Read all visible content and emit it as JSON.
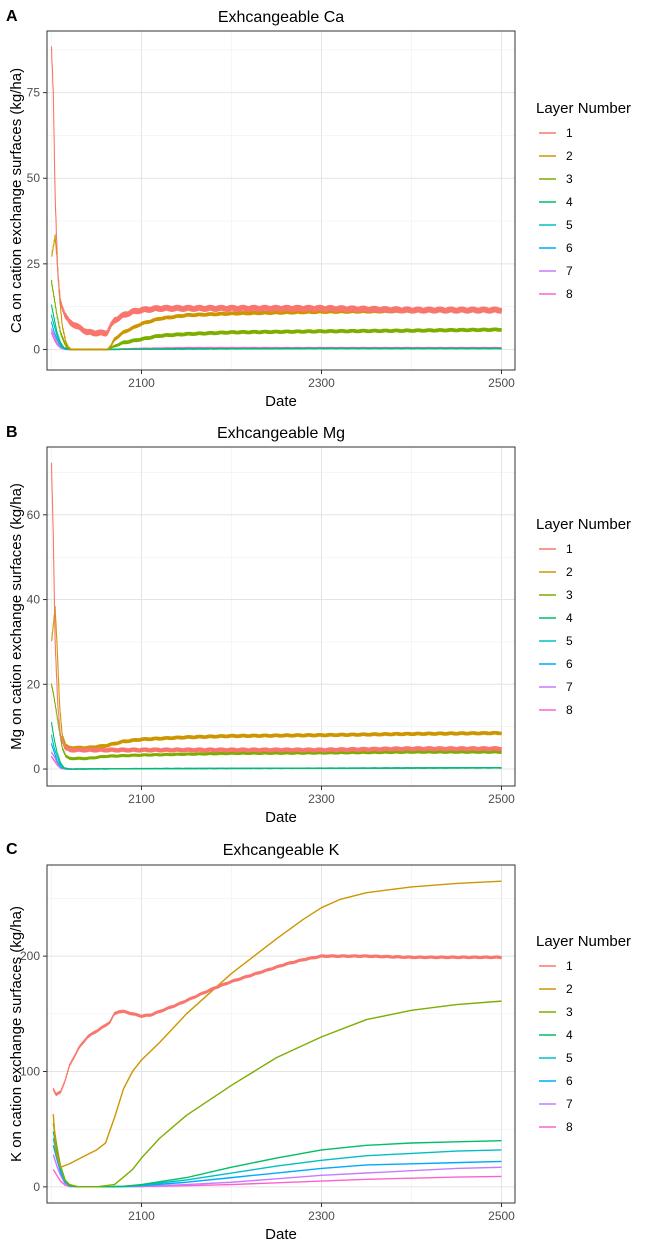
{
  "legend_colors": [
    "#F8766D",
    "#CD9600",
    "#7CAE00",
    "#00BE67",
    "#00BFC4",
    "#00A9FF",
    "#C77CFF",
    "#FF61CC"
  ],
  "chart_data": [
    {
      "type": "line",
      "panel_label": "A",
      "title": "Exhcangeable Ca",
      "xlabel": "Date",
      "ylabel": "Ca on cation exchange surfaces (kg/ha)",
      "xlim": [
        1995,
        2515
      ],
      "ylim": [
        -6,
        93
      ],
      "xticks": [
        2100,
        2300,
        2500
      ],
      "yticks": [
        0,
        25,
        50,
        75
      ],
      "grid": true,
      "legend": {
        "title": "Layer Number",
        "position": "right"
      },
      "series": [
        {
          "name": "1",
          "noise": 0.9,
          "x": [
            2000,
            2002,
            2004,
            2007,
            2010,
            2015,
            2020,
            2030,
            2040,
            2050,
            2060,
            2062,
            2066,
            2070,
            2080,
            2090,
            2100,
            2120,
            2150,
            2200,
            2300,
            2400,
            2500
          ],
          "y": [
            88,
            75,
            45,
            22,
            14,
            10,
            8,
            6.5,
            5,
            4.8,
            4.8,
            5,
            7,
            8.5,
            10,
            11,
            11.5,
            12,
            12,
            12,
            12,
            11.5,
            11.5
          ]
        },
        {
          "name": "2",
          "noise": 0.5,
          "x": [
            2000,
            2002,
            2004,
            2006,
            2009,
            2012,
            2016,
            2020,
            2062,
            2066,
            2070,
            2080,
            2100,
            2120,
            2150,
            2200,
            2300,
            2400,
            2500
          ],
          "y": [
            27,
            30,
            33,
            27,
            15,
            7,
            2,
            0,
            0,
            1,
            3,
            5,
            7.5,
            9,
            10,
            10.5,
            11,
            11.2,
            11.5
          ]
        },
        {
          "name": "3",
          "noise": 0.5,
          "x": [
            2000,
            2003,
            2006,
            2010,
            2016,
            2022,
            2062,
            2066,
            2070,
            2080,
            2100,
            2120,
            2150,
            2200,
            2300,
            2400,
            2500
          ],
          "y": [
            20,
            15,
            10,
            5,
            1,
            0,
            0,
            0.5,
            1,
            2,
            3,
            4,
            4.5,
            5,
            5.3,
            5.5,
            5.8
          ]
        },
        {
          "name": "4",
          "noise": 0.2,
          "x": [
            2000,
            2003,
            2006,
            2010,
            2014,
            2020,
            2062,
            2100,
            2200,
            2300,
            2500
          ],
          "y": [
            13,
            9,
            5,
            2,
            0.5,
            0,
            0,
            0.1,
            0.2,
            0.3,
            0.3
          ]
        },
        {
          "name": "5",
          "noise": 0.2,
          "x": [
            2000,
            2003,
            2006,
            2010,
            2014,
            2020,
            2062,
            2100,
            2200,
            2300,
            2500
          ],
          "y": [
            10,
            7,
            4,
            1.5,
            0.3,
            0,
            0,
            0.1,
            0.2,
            0.3,
            0.3
          ]
        },
        {
          "name": "6",
          "noise": 0.2,
          "x": [
            2000,
            2003,
            2006,
            2010,
            2016,
            2062,
            2100,
            2200,
            2300,
            2500
          ],
          "y": [
            8,
            5,
            3,
            1,
            0,
            0,
            0.1,
            0.2,
            0.3,
            0.3
          ]
        },
        {
          "name": "7",
          "noise": 0.2,
          "x": [
            2000,
            2003,
            2006,
            2010,
            2016,
            2062,
            2100,
            2200,
            2300,
            2500
          ],
          "y": [
            6,
            4,
            2,
            0.5,
            0,
            0,
            0.1,
            0.2,
            0.3,
            0.3
          ]
        },
        {
          "name": "8",
          "noise": 0.3,
          "x": [
            2000,
            2003,
            2006,
            2010,
            2016,
            2062,
            2100,
            2150,
            2200,
            2300,
            2500
          ],
          "y": [
            5,
            3,
            1.5,
            0.5,
            0,
            0,
            0.3,
            0.5,
            0.5,
            0.5,
            0.5
          ]
        }
      ]
    },
    {
      "type": "line",
      "panel_label": "B",
      "title": "Exhcangeable Mg",
      "xlabel": "Date",
      "ylabel": "Mg on cation exchange surfaces (kg/ha)",
      "xlim": [
        1995,
        2515
      ],
      "ylim": [
        -4,
        76
      ],
      "xticks": [
        2100,
        2300,
        2500
      ],
      "yticks": [
        0,
        20,
        40,
        60
      ],
      "grid": true,
      "legend": {
        "title": "Layer Number",
        "position": "right"
      },
      "series": [
        {
          "name": "1",
          "noise": 0.5,
          "x": [
            2000,
            2002,
            2004,
            2007,
            2010,
            2015,
            2020,
            2040,
            2060,
            2100,
            2200,
            2300,
            2400,
            2500
          ],
          "y": [
            72,
            55,
            30,
            15,
            8,
            5,
            4.5,
            4.5,
            4.5,
            4.5,
            4.5,
            4.5,
            4.8,
            4.8
          ]
        },
        {
          "name": "2",
          "noise": 0.4,
          "x": [
            2000,
            2002,
            2004,
            2006,
            2009,
            2012,
            2016,
            2020,
            2040,
            2060,
            2080,
            2100,
            2150,
            2200,
            2300,
            2400,
            2500
          ],
          "y": [
            30,
            34,
            38,
            30,
            15,
            8,
            5.5,
            5,
            5,
            5.5,
            6.5,
            7,
            7.5,
            7.8,
            8,
            8.3,
            8.5
          ]
        },
        {
          "name": "3",
          "noise": 0.3,
          "x": [
            2000,
            2002,
            2005,
            2008,
            2012,
            2016,
            2020,
            2040,
            2060,
            2100,
            2150,
            2200,
            2300,
            2400,
            2500
          ],
          "y": [
            20,
            18,
            14,
            10,
            5,
            3,
            2.5,
            2.5,
            3,
            3.3,
            3.5,
            3.7,
            3.8,
            4,
            4
          ]
        },
        {
          "name": "4",
          "noise": 0.15,
          "x": [
            2000,
            2003,
            2006,
            2010,
            2014,
            2020,
            2100,
            2300,
            2500
          ],
          "y": [
            11,
            7,
            4,
            1.5,
            0.3,
            0,
            0.1,
            0.2,
            0.3
          ]
        },
        {
          "name": "5",
          "noise": 0.15,
          "x": [
            2000,
            2003,
            2006,
            2010,
            2014,
            2020,
            2100,
            2300,
            2500
          ],
          "y": [
            8,
            5,
            3,
            1,
            0.2,
            0,
            0.1,
            0.2,
            0.3
          ]
        },
        {
          "name": "6",
          "noise": 0.15,
          "x": [
            2000,
            2003,
            2006,
            2010,
            2016,
            2100,
            2300,
            2500
          ],
          "y": [
            6,
            4,
            2,
            0.5,
            0,
            0.1,
            0.2,
            0.3
          ]
        },
        {
          "name": "7",
          "noise": 0.15,
          "x": [
            2000,
            2003,
            2006,
            2010,
            2016,
            2100,
            2300,
            2500
          ],
          "y": [
            4,
            3,
            1.5,
            0.3,
            0,
            0.1,
            0.2,
            0.3
          ]
        },
        {
          "name": "8",
          "noise": 0.15,
          "x": [
            2000,
            2003,
            2006,
            2010,
            2016,
            2100,
            2300,
            2500
          ],
          "y": [
            3,
            2,
            1,
            0.2,
            0,
            0.1,
            0.2,
            0.3
          ]
        }
      ]
    },
    {
      "type": "line",
      "panel_label": "C",
      "title": "Exhcangeable K",
      "xlabel": "Date",
      "ylabel": "K on cation exchange surfaces (kg/ha)",
      "xlim": [
        1995,
        2515
      ],
      "ylim": [
        -14,
        279
      ],
      "xticks": [
        2100,
        2300,
        2500
      ],
      "yticks": [
        0,
        100,
        200
      ],
      "grid": true,
      "legend": {
        "title": "Layer Number",
        "position": "right"
      },
      "series": [
        {
          "name": "1",
          "noise": 1.2,
          "x": [
            2002,
            2005,
            2010,
            2015,
            2020,
            2030,
            2040,
            2050,
            2060,
            2065,
            2070,
            2075,
            2080,
            2090,
            2100,
            2110,
            2120,
            2140,
            2160,
            2180,
            2200,
            2220,
            2240,
            2260,
            2280,
            2300,
            2320,
            2350,
            2400,
            2450,
            2500
          ],
          "y": [
            85,
            80,
            82,
            92,
            105,
            120,
            130,
            135,
            140,
            143,
            150,
            152,
            152,
            150,
            148,
            149,
            152,
            158,
            165,
            172,
            178,
            183,
            188,
            193,
            197,
            200,
            200,
            200,
            199,
            199,
            199
          ]
        },
        {
          "name": "2",
          "noise": 0,
          "x": [
            2002,
            2005,
            2010,
            2020,
            2030,
            2040,
            2050,
            2060,
            2070,
            2080,
            2090,
            2100,
            2120,
            2150,
            2200,
            2250,
            2280,
            2300,
            2320,
            2350,
            2400,
            2450,
            2500
          ],
          "y": [
            63,
            30,
            17,
            20,
            24,
            28,
            32,
            38,
            60,
            85,
            100,
            110,
            125,
            150,
            185,
            215,
            232,
            242,
            249,
            255,
            260,
            263,
            265
          ]
        },
        {
          "name": "3",
          "noise": 0,
          "x": [
            2002,
            2006,
            2010,
            2015,
            2020,
            2030,
            2050,
            2070,
            2090,
            2100,
            2120,
            2150,
            2200,
            2250,
            2300,
            2350,
            2400,
            2450,
            2500
          ],
          "y": [
            55,
            35,
            18,
            6,
            2,
            0,
            0,
            2,
            15,
            25,
            42,
            62,
            88,
            112,
            130,
            145,
            153,
            158,
            161
          ]
        },
        {
          "name": "4",
          "noise": 0,
          "x": [
            2002,
            2006,
            2010,
            2015,
            2020,
            2030,
            2060,
            2080,
            2100,
            2150,
            2200,
            2250,
            2300,
            2350,
            2400,
            2450,
            2500
          ],
          "y": [
            48,
            32,
            18,
            6,
            1,
            0,
            0,
            0.5,
            2,
            8,
            17,
            25,
            32,
            36,
            38,
            39,
            40
          ]
        },
        {
          "name": "5",
          "noise": 0,
          "x": [
            2002,
            2006,
            2010,
            2015,
            2020,
            2030,
            2060,
            2080,
            2100,
            2150,
            2200,
            2250,
            2300,
            2350,
            2400,
            2450,
            2500
          ],
          "y": [
            42,
            28,
            15,
            5,
            1,
            0,
            0,
            0.5,
            1.5,
            6,
            12,
            18,
            23,
            27,
            29,
            31,
            32
          ]
        },
        {
          "name": "6",
          "noise": 0,
          "x": [
            2002,
            2006,
            2010,
            2015,
            2020,
            2030,
            2060,
            2080,
            2100,
            2150,
            2200,
            2250,
            2300,
            2350,
            2400,
            2450,
            2500
          ],
          "y": [
            36,
            24,
            13,
            4,
            1,
            0,
            0,
            0.3,
            1,
            4,
            8,
            12,
            16,
            19,
            20,
            21,
            22
          ]
        },
        {
          "name": "7",
          "noise": 0,
          "x": [
            2002,
            2006,
            2010,
            2015,
            2020,
            2030,
            2060,
            2080,
            2100,
            2150,
            2200,
            2250,
            2300,
            2350,
            2400,
            2450,
            2500
          ],
          "y": [
            28,
            18,
            10,
            3,
            0.5,
            0,
            0,
            0.2,
            0.5,
            2,
            4,
            7,
            10,
            12,
            14,
            16,
            17
          ]
        },
        {
          "name": "8",
          "noise": 0,
          "x": [
            2002,
            2006,
            2010,
            2015,
            2020,
            2030,
            2060,
            2080,
            2100,
            2150,
            2200,
            2250,
            2300,
            2350,
            2400,
            2450,
            2500
          ],
          "y": [
            15,
            10,
            5,
            1.5,
            0.3,
            0,
            0,
            0.1,
            0.3,
            1,
            2,
            3.5,
            5,
            6.5,
            7.5,
            8.5,
            9
          ]
        }
      ]
    }
  ]
}
